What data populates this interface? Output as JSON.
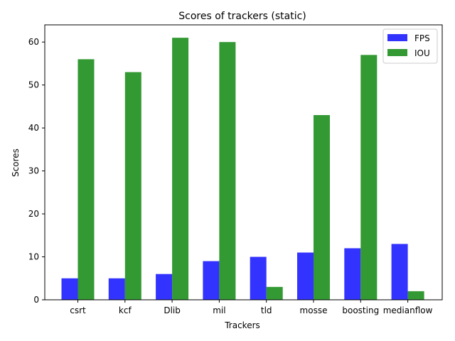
{
  "chart_data": {
    "type": "bar",
    "title": "Scores of trackers (static)",
    "xlabel": "Trackers",
    "ylabel": "Scores",
    "categories": [
      "csrt",
      "kcf",
      "Dlib",
      "mil",
      "tld",
      "mosse",
      "boosting",
      "medianflow"
    ],
    "series": [
      {
        "name": "FPS",
        "color": "#3333ff",
        "values": [
          5,
          5,
          6,
          9,
          10,
          11,
          12,
          13
        ]
      },
      {
        "name": "IOU",
        "color": "#339933",
        "values": [
          56,
          53,
          61,
          60,
          3,
          43,
          57,
          2
        ]
      }
    ],
    "ylim": [
      0,
      64
    ],
    "yticks": [
      0,
      10,
      20,
      30,
      40,
      50,
      60
    ],
    "grid": false,
    "legend": "top-right"
  }
}
